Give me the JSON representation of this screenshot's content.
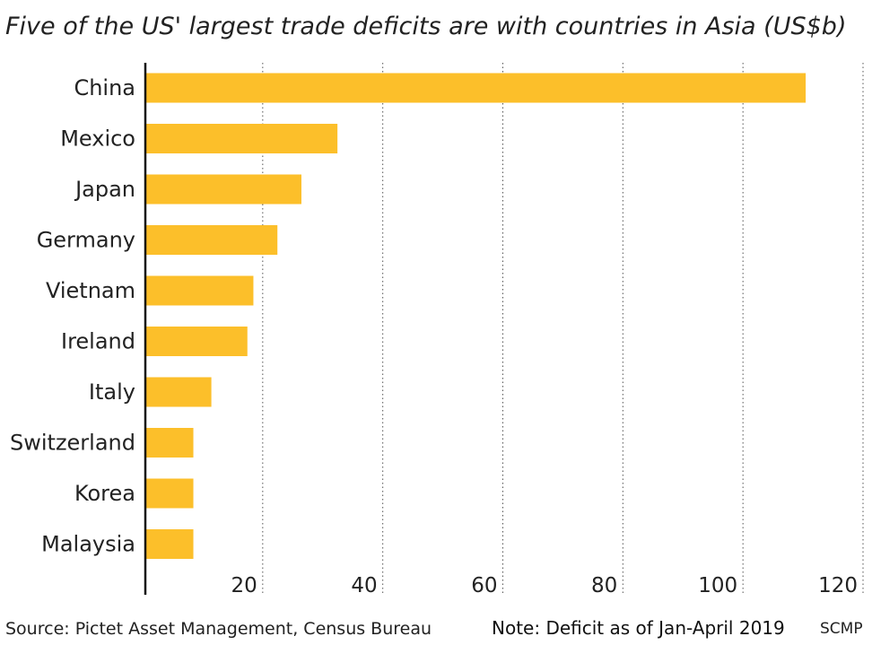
{
  "chart_data": {
    "type": "bar",
    "orientation": "horizontal",
    "title": "Five of the US' largest trade deficits are with countries in Asia (US$b)",
    "categories": [
      "China",
      "Mexico",
      "Japan",
      "Germany",
      "Vietnam",
      "Ireland",
      "Italy",
      "Switzerland",
      "Korea",
      "Malaysia"
    ],
    "values": [
      110,
      32,
      26,
      22,
      18,
      17,
      11,
      8,
      8,
      8
    ],
    "xlim": [
      0,
      120
    ],
    "xticks": [
      20,
      40,
      60,
      80,
      100,
      120
    ],
    "grid": "vertical dotted",
    "bar_color": "#fcbf2a",
    "xlabel": "",
    "ylabel": ""
  },
  "footer": {
    "source": "Source: Pictet Asset Management, Census Bureau",
    "note": "Note: Deficit as of Jan-April 2019",
    "credit": "SCMP"
  }
}
